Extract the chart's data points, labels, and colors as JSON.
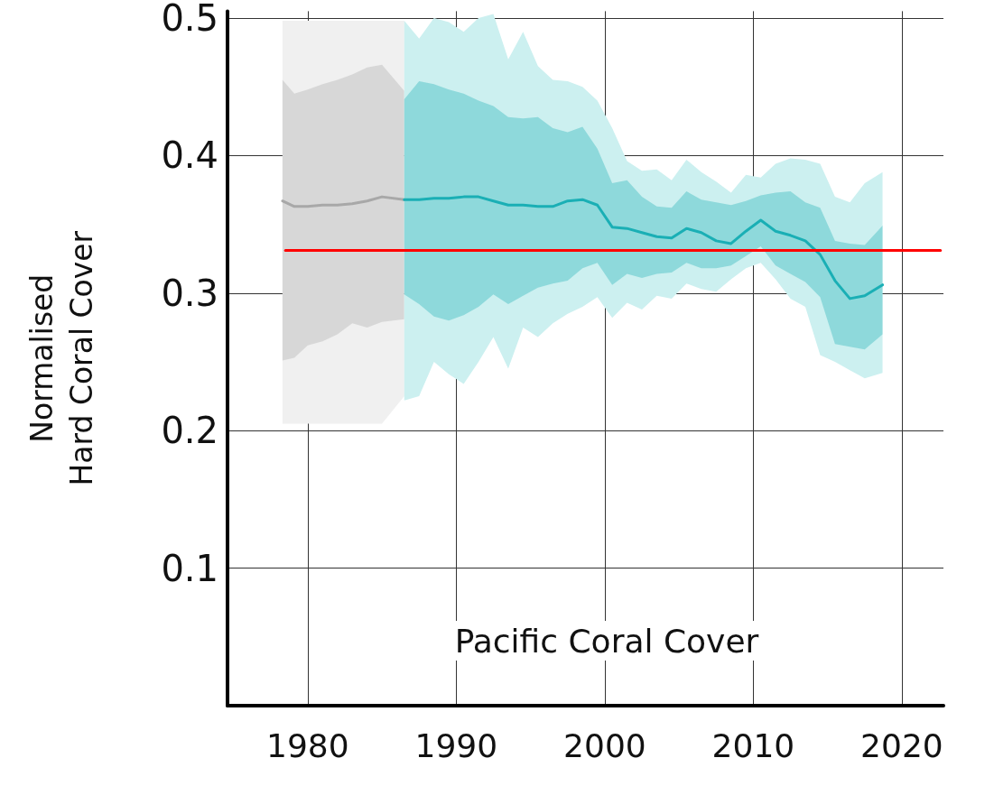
{
  "chart_data": {
    "type": "line",
    "title": "Pacific Coral Cover",
    "ylabel": "Normalised\nHard Coral Cover",
    "xlim": [
      1974.6,
      2022.8
    ],
    "xticks": [
      1980,
      1990,
      2000,
      2010,
      2020
    ],
    "ylim": [
      0,
      0.505
    ],
    "yticks": [
      {
        "value": 0.1,
        "label": "0.1"
      },
      {
        "value": 0.2,
        "label": "0.2"
      },
      {
        "value": 0.3,
        "label": "0.3"
      },
      {
        "value": 0.4,
        "label": "0.4"
      },
      {
        "value": 0.5,
        "label": "0.5"
      }
    ],
    "grid": true,
    "marker": "none",
    "line_style": "solid",
    "series": [
      {
        "color": "#f0f0f0",
        "x": [
          1978.3,
          1979.1,
          1980,
          1981,
          1982,
          1983,
          1984,
          1985,
          1986.5
        ],
        "values": [
          null,
          null,
          null,
          null,
          null,
          null,
          null,
          null,
          null
        ],
        "lower": [
          0.205,
          0.205,
          0.205,
          0.205,
          0.205,
          0.205,
          0.205,
          0.205,
          0.225
        ],
        "upper": [
          0.498,
          0.498,
          0.498,
          0.498,
          0.498,
          0.498,
          0.498,
          0.498,
          0.498
        ]
      },
      {
        "color": "#a8a8a8",
        "x": [
          1978.3,
          1979.1,
          1980,
          1981,
          1982,
          1983,
          1984,
          1985,
          1986.5
        ],
        "values": [
          0.367,
          0.363,
          0.363,
          0.364,
          0.364,
          0.365,
          0.367,
          0.37,
          0.368
        ],
        "lower": [
          0.251,
          0.253,
          0.262,
          0.265,
          0.27,
          0.278,
          0.275,
          0.279,
          0.281
        ],
        "upper": [
          0.455,
          0.445,
          0.448,
          0.452,
          0.455,
          0.459,
          0.464,
          0.466,
          0.447
        ]
      },
      {
        "color": "#ccf0f0",
        "x": [
          1986.5,
          1987.5,
          1988.5,
          1989.5,
          1990.5,
          1991.5,
          1992.5,
          1993.5,
          1994.5,
          1995.5,
          1996.5,
          1997.5,
          1998.5,
          1999.5,
          2000.5,
          2001.5,
          2002.5,
          2003.5,
          2004.5,
          2005.5,
          2006.5,
          2007.5,
          2008.5,
          2009.5,
          2010.5,
          2011.5,
          2012.5,
          2013.5,
          2014.5,
          2015.5,
          2016.5,
          2017.5,
          2018.7
        ],
        "values": [
          null,
          null,
          null,
          null,
          null,
          null,
          null,
          null,
          null,
          null,
          null,
          null,
          null,
          null,
          null,
          null,
          null,
          null,
          null,
          null,
          null,
          null,
          null,
          null,
          null,
          null,
          null,
          null,
          null,
          null,
          null,
          null,
          null
        ],
        "lower": [
          0.222,
          0.225,
          0.25,
          0.241,
          0.234,
          0.25,
          0.268,
          0.245,
          0.275,
          0.268,
          0.278,
          0.285,
          0.29,
          0.297,
          0.282,
          0.293,
          0.288,
          0.298,
          0.296,
          0.307,
          0.303,
          0.301,
          0.31,
          0.318,
          0.322,
          0.31,
          0.296,
          0.29,
          0.255,
          0.25,
          0.244,
          0.238,
          0.242
        ],
        "upper": [
          0.498,
          0.485,
          0.5,
          0.497,
          0.49,
          0.5,
          0.503,
          0.47,
          0.49,
          0.465,
          0.455,
          0.454,
          0.45,
          0.44,
          0.42,
          0.396,
          0.389,
          0.39,
          0.382,
          0.397,
          0.388,
          0.381,
          0.373,
          0.386,
          0.384,
          0.394,
          0.398,
          0.397,
          0.394,
          0.37,
          0.366,
          0.38,
          0.388
        ]
      },
      {
        "color": "#1aafb5",
        "x": [
          1986.5,
          1987.5,
          1988.5,
          1989.5,
          1990.5,
          1991.5,
          1992.5,
          1993.5,
          1994.5,
          1995.5,
          1996.5,
          1997.5,
          1998.5,
          1999.5,
          2000.5,
          2001.5,
          2002.5,
          2003.5,
          2004.5,
          2005.5,
          2006.5,
          2007.5,
          2008.5,
          2009.5,
          2010.5,
          2011.5,
          2012.5,
          2013.5,
          2014.5,
          2015.5,
          2016.5,
          2017.5,
          2018.7
        ],
        "values": [
          0.368,
          0.368,
          0.369,
          0.369,
          0.37,
          0.37,
          0.367,
          0.364,
          0.364,
          0.363,
          0.363,
          0.367,
          0.368,
          0.364,
          0.348,
          0.347,
          0.344,
          0.341,
          0.34,
          0.347,
          0.344,
          0.338,
          0.336,
          0.345,
          0.353,
          0.345,
          0.342,
          0.338,
          0.328,
          0.309,
          0.296,
          0.298,
          0.306
        ],
        "lower": [
          0.299,
          0.292,
          0.283,
          0.28,
          0.284,
          0.29,
          0.299,
          0.292,
          0.298,
          0.304,
          0.307,
          0.309,
          0.318,
          0.322,
          0.306,
          0.314,
          0.311,
          0.314,
          0.315,
          0.322,
          0.318,
          0.318,
          0.32,
          0.327,
          0.334,
          0.32,
          0.314,
          0.308,
          0.297,
          0.263,
          0.261,
          0.259,
          0.27
        ],
        "upper": [
          0.441,
          0.454,
          0.452,
          0.448,
          0.445,
          0.44,
          0.436,
          0.428,
          0.427,
          0.428,
          0.42,
          0.417,
          0.421,
          0.405,
          0.38,
          0.382,
          0.37,
          0.363,
          0.362,
          0.374,
          0.368,
          0.366,
          0.364,
          0.367,
          0.371,
          0.373,
          0.374,
          0.366,
          0.362,
          0.338,
          0.336,
          0.335,
          0.349
        ]
      },
      {
        "color": "#ff0000",
        "x": [
          1978.5,
          2022.6
        ],
        "values": [
          0.331,
          0.331
        ]
      }
    ]
  }
}
